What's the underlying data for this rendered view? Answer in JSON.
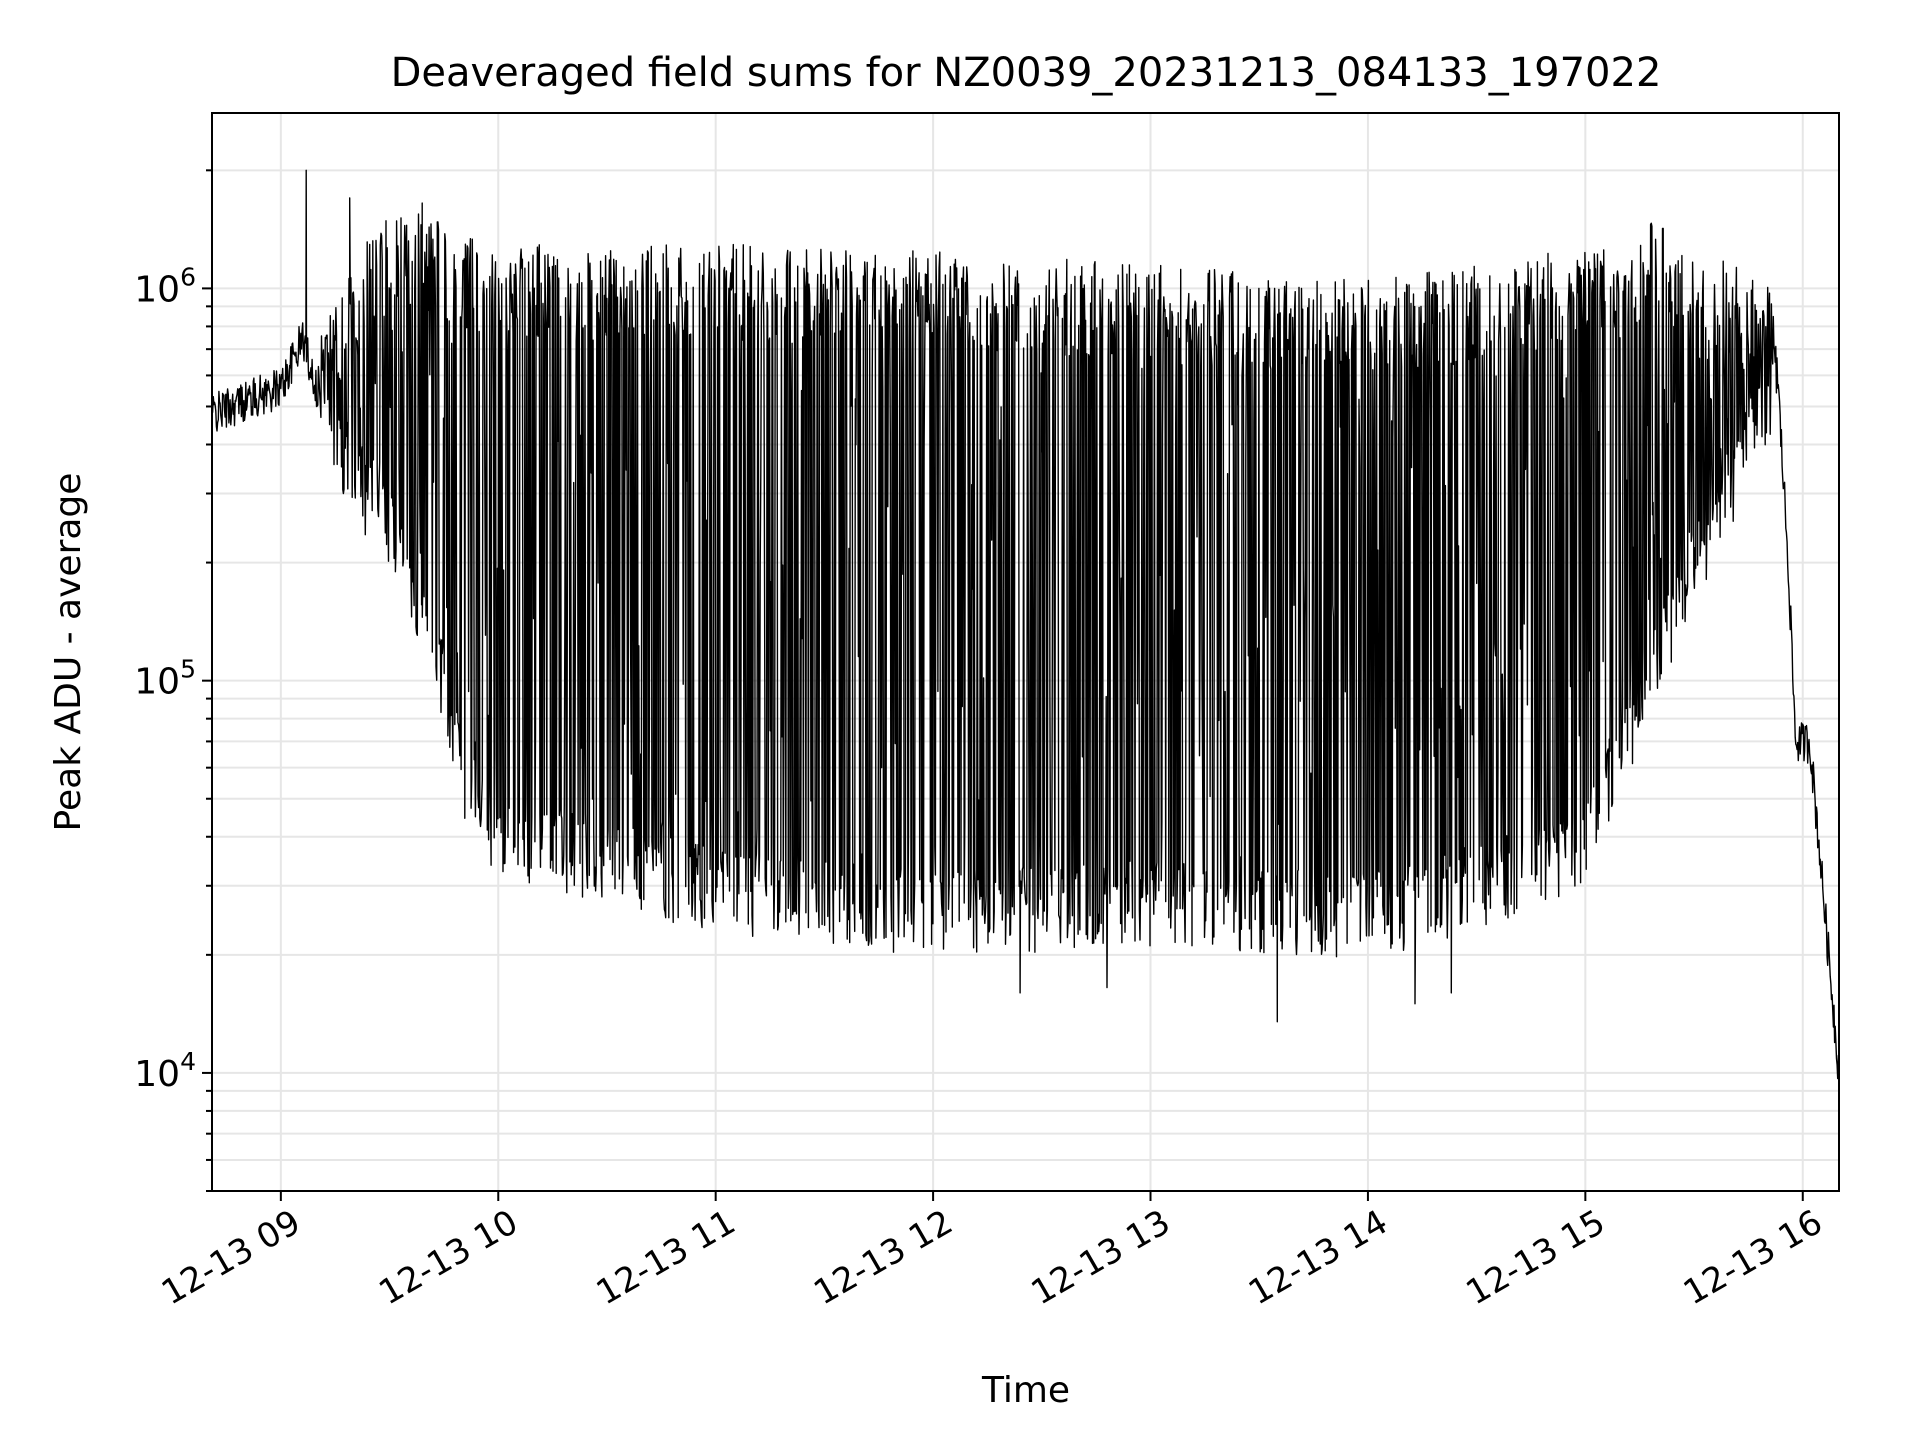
{
  "chart_data": {
    "type": "line",
    "title": "Deaveraged field sums for NZ0039_20231213_084133_197022",
    "xlabel": "Time",
    "ylabel": "Peak ADU - average",
    "yscale": "log",
    "ylim": [
      5000,
      2800000
    ],
    "xlim": [
      "2023-12-13 08:41",
      "2023-12-13 16:10"
    ],
    "grid": true,
    "legend": "none",
    "x_ticks": [
      {
        "time": "2023-12-13 09:00",
        "label": "12-13 09"
      },
      {
        "time": "2023-12-13 10:00",
        "label": "12-13 10"
      },
      {
        "time": "2023-12-13 11:00",
        "label": "12-13 11"
      },
      {
        "time": "2023-12-13 12:00",
        "label": "12-13 12"
      },
      {
        "time": "2023-12-13 13:00",
        "label": "12-13 13"
      },
      {
        "time": "2023-12-13 14:00",
        "label": "12-13 14"
      },
      {
        "time": "2023-12-13 15:00",
        "label": "12-13 15"
      },
      {
        "time": "2023-12-13 16:00",
        "label": "12-13 16"
      }
    ],
    "y_ticks": [
      {
        "value": 10000,
        "base": "10",
        "exp": "4"
      },
      {
        "value": 100000,
        "base": "10",
        "exp": "5"
      },
      {
        "value": 1000000,
        "base": "10",
        "exp": "6"
      }
    ],
    "series": [
      {
        "color": "#000000",
        "description_points": [
          {
            "x": "2023-12-13 08:41",
            "y": 480000
          },
          {
            "x": "2023-12-13 08:50",
            "y": 520000
          },
          {
            "x": "2023-12-13 09:00",
            "y": 560000
          },
          {
            "x": "2023-12-13 09:06",
            "y": 750000
          },
          {
            "x": "2023-12-13 09:10",
            "y": 560000
          },
          {
            "x": "2023-12-13 09:20",
            "y": 340000
          },
          {
            "x": "2023-12-13 09:30",
            "y": 260000
          },
          {
            "x": "2023-12-13 09:40",
            "y": 150000
          },
          {
            "x": "2023-12-13 09:45",
            "y": 100000
          },
          {
            "x": "2023-12-13 09:50",
            "y": 60000
          },
          {
            "x": "2023-12-13 10:00",
            "y": 42000
          },
          {
            "x": "2023-12-13 11:00",
            "y": 30000
          },
          {
            "x": "2023-12-13 12:00",
            "y": 26000
          },
          {
            "x": "2023-12-13 13:00",
            "y": 28000
          },
          {
            "x": "2023-12-13 14:00",
            "y": 26000
          },
          {
            "x": "2023-12-13 14:30",
            "y": 30000
          },
          {
            "x": "2023-12-13 15:00",
            "y": 40000
          },
          {
            "x": "2023-12-13 15:30",
            "y": 200000
          },
          {
            "x": "2023-12-13 15:53",
            "y": 600000
          },
          {
            "x": "2023-12-13 15:56",
            "y": 200000
          },
          {
            "x": "2023-12-13 15:58",
            "y": 70000
          },
          {
            "x": "2023-12-13 16:02",
            "y": 70000
          },
          {
            "x": "2023-12-13 16:10",
            "y": 10000
          }
        ],
        "upper_envelope": [
          {
            "x": "2023-12-13 09:10",
            "y": 750000
          },
          {
            "x": "2023-12-13 09:30",
            "y": 1700000
          },
          {
            "x": "2023-12-13 09:50",
            "y": 1400000
          },
          {
            "x": "2023-12-13 10:00",
            "y": 1300000
          },
          {
            "x": "2023-12-13 11:00",
            "y": 1300000
          },
          {
            "x": "2023-12-13 12:00",
            "y": 1250000
          },
          {
            "x": "2023-12-13 13:00",
            "y": 1150000
          },
          {
            "x": "2023-12-13 14:00",
            "y": 1050000
          },
          {
            "x": "2023-12-13 14:30",
            "y": 1150000
          },
          {
            "x": "2023-12-13 15:00",
            "y": 1300000
          },
          {
            "x": "2023-12-13 15:20",
            "y": 1500000
          },
          {
            "x": "2023-12-13 15:53",
            "y": 1000000
          }
        ],
        "notable_spikes": [
          {
            "x": "2023-12-13 09:07",
            "y": 2000000
          },
          {
            "x": "2023-12-13 09:19",
            "y": 1700000
          },
          {
            "x": "2023-12-13 09:39",
            "y": 1650000
          }
        ],
        "notable_dips": [
          {
            "x": "2023-12-13 12:24",
            "y": 16000
          },
          {
            "x": "2023-12-13 12:48",
            "y": 16500
          },
          {
            "x": "2023-12-13 13:35",
            "y": 13500
          },
          {
            "x": "2023-12-13 14:13",
            "y": 15000
          },
          {
            "x": "2023-12-13 14:23",
            "y": 16000
          }
        ]
      }
    ]
  }
}
